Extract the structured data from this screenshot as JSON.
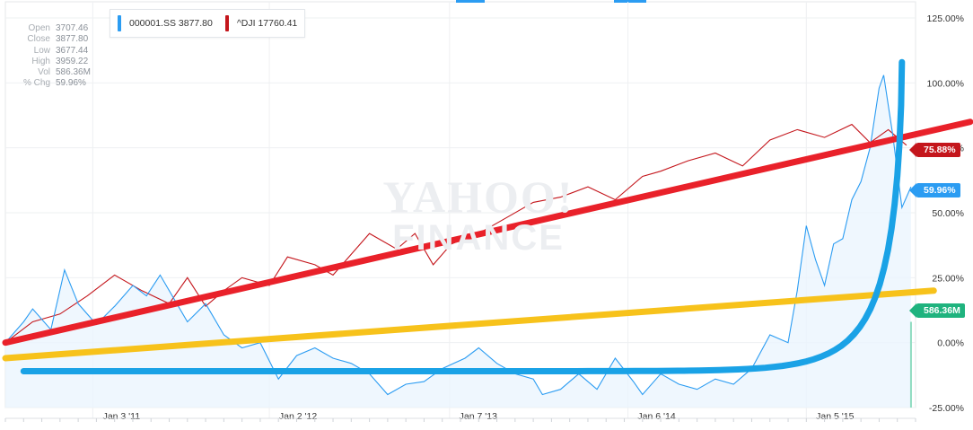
{
  "chart_data": {
    "type": "line",
    "x_axis_ticks": [
      "Jan 3 '11",
      "Jan 2 '12",
      "Jan 7 '13",
      "Jan 6 '14",
      "Jan 5 '15"
    ],
    "y_axis_ticks": [
      "125.00%",
      "100.00%",
      "75.00%",
      "50.00%",
      "25.00%",
      "0.00%",
      "-25.00%"
    ],
    "ylim": [
      -25,
      125
    ],
    "grid": true,
    "watermark": [
      "YAHOO!",
      "FINANCE"
    ],
    "series": [
      {
        "name": "000001.SS",
        "legend_value": "3877.80",
        "color": "#2b9cf2",
        "last_change": "59.96%",
        "values": [
          [
            0,
            0
          ],
          [
            0.02,
            8
          ],
          [
            0.03,
            13
          ],
          [
            0.05,
            5
          ],
          [
            0.065,
            28
          ],
          [
            0.08,
            15
          ],
          [
            0.1,
            7
          ],
          [
            0.12,
            14
          ],
          [
            0.14,
            22
          ],
          [
            0.155,
            18
          ],
          [
            0.17,
            26
          ],
          [
            0.19,
            14
          ],
          [
            0.2,
            8
          ],
          [
            0.22,
            15
          ],
          [
            0.24,
            3
          ],
          [
            0.26,
            -2
          ],
          [
            0.28,
            0
          ],
          [
            0.3,
            -14
          ],
          [
            0.32,
            -5
          ],
          [
            0.34,
            -2
          ],
          [
            0.36,
            -6
          ],
          [
            0.38,
            -8
          ],
          [
            0.4,
            -12
          ],
          [
            0.42,
            -20
          ],
          [
            0.44,
            -16
          ],
          [
            0.46,
            -15
          ],
          [
            0.48,
            -10
          ],
          [
            0.505,
            -6
          ],
          [
            0.52,
            -2
          ],
          [
            0.54,
            -8
          ],
          [
            0.56,
            -12
          ],
          [
            0.58,
            -14
          ],
          [
            0.59,
            -20
          ],
          [
            0.61,
            -18
          ],
          [
            0.63,
            -12
          ],
          [
            0.65,
            -18
          ],
          [
            0.67,
            -6
          ],
          [
            0.69,
            -15
          ],
          [
            0.7,
            -20
          ],
          [
            0.72,
            -12
          ],
          [
            0.74,
            -16
          ],
          [
            0.76,
            -18
          ],
          [
            0.78,
            -14
          ],
          [
            0.8,
            -16
          ],
          [
            0.82,
            -10
          ],
          [
            0.84,
            3
          ],
          [
            0.86,
            0
          ],
          [
            0.87,
            20
          ],
          [
            0.88,
            45
          ],
          [
            0.89,
            32
          ],
          [
            0.9,
            22
          ],
          [
            0.91,
            38
          ],
          [
            0.92,
            40
          ],
          [
            0.93,
            55
          ],
          [
            0.94,
            62
          ],
          [
            0.95,
            75
          ],
          [
            0.96,
            98
          ],
          [
            0.965,
            103
          ],
          [
            0.975,
            80
          ],
          [
            0.985,
            52
          ],
          [
            0.995,
            60
          ]
        ]
      },
      {
        "name": "^DJI",
        "legend_value": "17760.41",
        "color": "#c4161c",
        "last_change": "75.88%",
        "values": [
          [
            0,
            0
          ],
          [
            0.03,
            8
          ],
          [
            0.06,
            11
          ],
          [
            0.09,
            18
          ],
          [
            0.12,
            26
          ],
          [
            0.15,
            20
          ],
          [
            0.18,
            15
          ],
          [
            0.2,
            25
          ],
          [
            0.22,
            14
          ],
          [
            0.24,
            20
          ],
          [
            0.26,
            25
          ],
          [
            0.29,
            22
          ],
          [
            0.31,
            33
          ],
          [
            0.34,
            30
          ],
          [
            0.36,
            26
          ],
          [
            0.38,
            34
          ],
          [
            0.4,
            42
          ],
          [
            0.43,
            36
          ],
          [
            0.45,
            42
          ],
          [
            0.47,
            30
          ],
          [
            0.49,
            38
          ],
          [
            0.52,
            42
          ],
          [
            0.55,
            48
          ],
          [
            0.58,
            54
          ],
          [
            0.61,
            56
          ],
          [
            0.64,
            60
          ],
          [
            0.67,
            55
          ],
          [
            0.7,
            64
          ],
          [
            0.72,
            66
          ],
          [
            0.75,
            70
          ],
          [
            0.78,
            73
          ],
          [
            0.81,
            68
          ],
          [
            0.84,
            78
          ],
          [
            0.87,
            82
          ],
          [
            0.9,
            79
          ],
          [
            0.93,
            84
          ],
          [
            0.95,
            77
          ],
          [
            0.97,
            82
          ],
          [
            0.99,
            76
          ]
        ]
      },
      {
        "name": "Volume",
        "color": "#1fb37e",
        "last_value": "586.36M"
      }
    ],
    "annotations": [
      {
        "name": "red trend line",
        "color": "#e9212a",
        "from": [
          0,
          0
        ],
        "to": [
          1.06,
          85
        ]
      },
      {
        "name": "yellow trend line",
        "color": "#f7c21b",
        "from": [
          0,
          -6
        ],
        "to": [
          1.02,
          20
        ]
      },
      {
        "name": "blue exponential curve",
        "color": "#1aa2e6",
        "from": [
          0.02,
          -11
        ],
        "to": [
          0.985,
          108
        ]
      }
    ]
  },
  "ohlc": [
    {
      "label": "Open",
      "value": "3707.46"
    },
    {
      "label": "Close",
      "value": "3877.80"
    },
    {
      "label": "Low",
      "value": "3677.44"
    },
    {
      "label": "High",
      "value": "3959.22"
    },
    {
      "label": "Vol",
      "value": "586.36M"
    },
    {
      "label": "% Chg",
      "value": "59.96%"
    }
  ]
}
